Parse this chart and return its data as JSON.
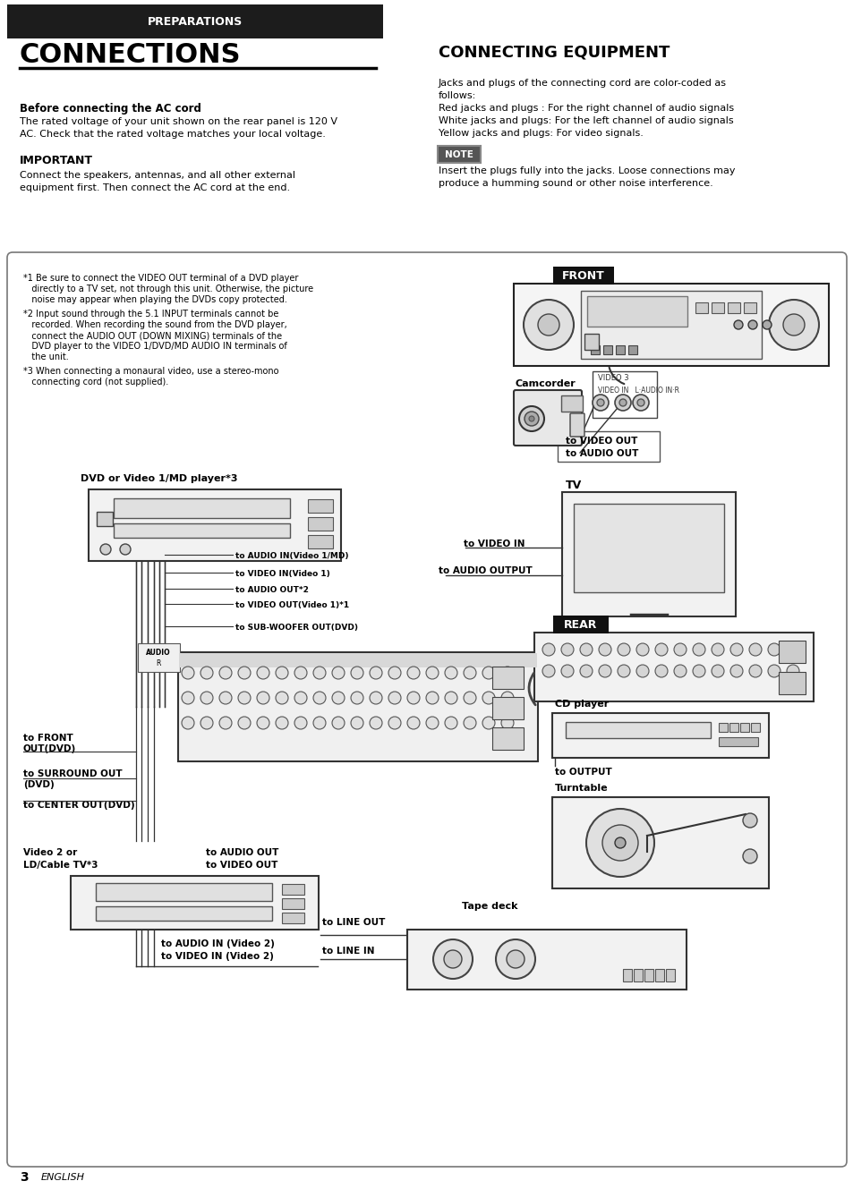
{
  "page_bg": "#ffffff",
  "header_bg": "#1a1a1a",
  "header_text": "PREPARATIONS",
  "header_text_color": "#ffffff",
  "title_left": "CONNECTIONS",
  "title_right": "CONNECTING EQUIPMENT",
  "section1_heading": "Before connecting the AC cord",
  "section1_body1": "The rated voltage of your unit shown on the rear panel is 120 V",
  "section1_body2": "AC. Check that the rated voltage matches your local voltage.",
  "section2_heading": "IMPORTANT",
  "section2_body1": "Connect the speakers, antennas, and all other external",
  "section2_body2": "equipment first. Then connect the AC cord at the end.",
  "right_intro1": "Jacks and plugs of the connecting cord are color-coded as",
  "right_intro2": "follows:",
  "right_line1": "Red jacks and plugs : For the right channel of audio signals",
  "right_line2": "White jacks and plugs: For the left channel of audio signals",
  "right_line3": "Yellow jacks and plugs: For video signals.",
  "note_box_text": "NOTE",
  "note_text1": "Insert the plugs fully into the jacks. Loose connections may",
  "note_text2": "produce a humming sound or other noise interference.",
  "fn1_line1": "*1 Be sure to connect the VIDEO OUT terminal of a DVD player",
  "fn1_line2": "   directly to a TV set, not through this unit. Otherwise, the picture",
  "fn1_line3": "   noise may appear when playing the DVDs copy protected.",
  "fn2_line1": "*2 Input sound through the 5.1 INPUT terminals cannot be",
  "fn2_line2": "   recorded. When recording the sound from the DVD player,",
  "fn2_line3": "   connect the AUDIO OUT (DOWN MIXING) terminals of the",
  "fn2_line4": "   DVD player to the VIDEO 1/DVD/MD AUDIO IN terminals of",
  "fn2_line5": "   the unit.",
  "fn3_line1": "*3 When connecting a monaural video, use a stereo-mono",
  "fn3_line2": "   connecting cord (not supplied).",
  "page_number": "3",
  "page_lang": "ENGLISH"
}
